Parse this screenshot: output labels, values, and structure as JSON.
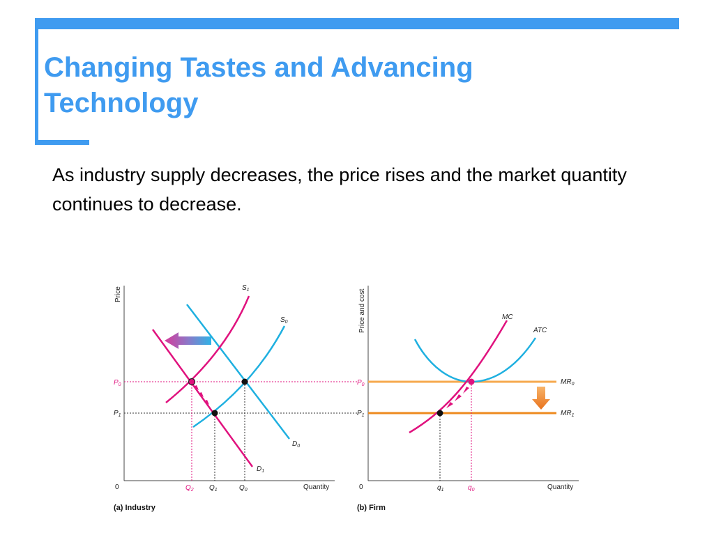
{
  "slide": {
    "title_line1": "Changing Tastes and Advancing",
    "title_line2": "Technology",
    "body": "As industry supply decreases, the price rises and the market quantity continues to decrease.",
    "accent_color": "#3f9bf0"
  },
  "industry": {
    "caption": "(a) Industry",
    "y_axis": "Price",
    "x_axis": "Quantity",
    "origin": "0",
    "labels": {
      "S1": "S",
      "S1_sub": "1",
      "S0": "S",
      "S0_sub": "0",
      "D0": "D",
      "D0_sub": "0",
      "D1": "D",
      "D1_sub": "1",
      "P0": "P",
      "P0_sub": "0",
      "P1": "P",
      "P1_sub": "1",
      "Q2": "Q",
      "Q2_sub": "2",
      "Q1": "Q",
      "Q1_sub": "1",
      "Q0": "Q",
      "Q0_sub": "0"
    },
    "colors": {
      "supply": "#1fb0e0",
      "demand_shift": "#e0127e",
      "price_line": "#e0127e"
    }
  },
  "firm": {
    "caption": "(b) Firm",
    "y_axis": "Price and cost",
    "x_axis": "Quantity",
    "origin": "0",
    "labels": {
      "MC": "MC",
      "ATC": "ATC",
      "MR0": "MR",
      "MR0_sub": "0",
      "MR1": "MR",
      "MR1_sub": "1",
      "P0": "P",
      "P0_sub": "0",
      "P1": "P",
      "P1_sub": "1",
      "q1": "q",
      "q1_sub": "1",
      "q0": "q",
      "q0_sub": "0"
    },
    "colors": {
      "mr0": "#f6a94e",
      "mr1": "#ee8a1e",
      "mc": "#e0127e",
      "atc": "#1fb0e0"
    }
  }
}
